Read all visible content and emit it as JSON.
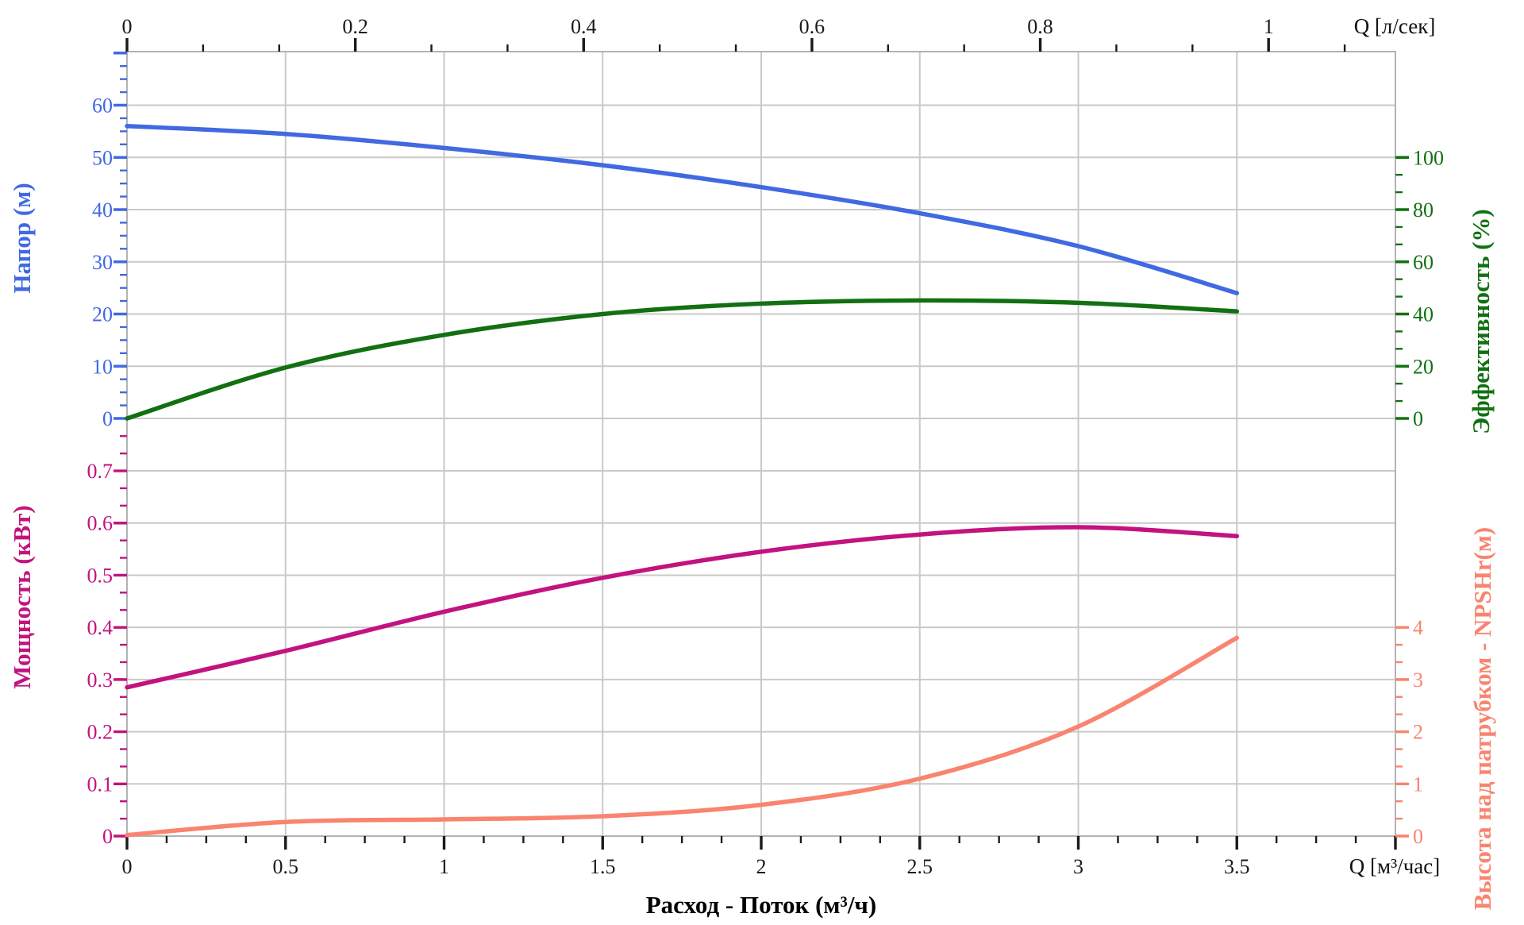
{
  "chart_data": {
    "type": "line",
    "title": "",
    "grid": true,
    "legend": "none",
    "x": [
      0,
      0.5,
      1,
      1.5,
      2,
      2.5,
      3,
      3.5
    ],
    "series": [
      {
        "name": "Напор",
        "unit": "м",
        "axis": "head_left",
        "color": "#4169e1",
        "values": [
          56,
          54.5,
          51.8,
          48.5,
          44.3,
          39.3,
          33,
          24
        ]
      },
      {
        "name": "Эффективность",
        "unit": "%",
        "axis": "efficiency_right",
        "color": "#127012",
        "values": [
          0,
          19.5,
          32,
          40,
          44,
          45.2,
          44.3,
          41
        ]
      },
      {
        "name": "Мощность",
        "unit": "кВт",
        "axis": "power_left",
        "color": "#c2137f",
        "values": [
          0.285,
          0.355,
          0.43,
          0.495,
          0.545,
          0.578,
          0.592,
          0.575
        ]
      },
      {
        "name": "NPSHr",
        "unit": "м",
        "axis": "npshr_right",
        "color": "#f9846f",
        "values": [
          0.02,
          0.27,
          0.32,
          0.38,
          0.6,
          1.1,
          2.1,
          3.8
        ]
      }
    ],
    "axes": {
      "top_x": {
        "unit_label": "Q [л/сек]",
        "ticks": [
          "0",
          "0.2",
          "0.4",
          "0.6",
          "0.8",
          "1"
        ],
        "range": [
          0,
          1.11
        ],
        "color": "#1a1a1a"
      },
      "bottom_x": {
        "unit_label": "Q [м³/час]",
        "title": "Расход - Поток (м³/ч)",
        "ticks": [
          "0",
          "0.5",
          "1",
          "1.5",
          "2",
          "2.5",
          "3",
          "3.5"
        ],
        "range": [
          0,
          4
        ],
        "color": "#1a1a1a"
      },
      "head_left": {
        "title": "Напор (м)",
        "ticks": [
          "0",
          "10",
          "20",
          "30",
          "40",
          "50",
          "60"
        ],
        "range": [
          0,
          60
        ],
        "color": "#4169e1"
      },
      "efficiency_right": {
        "title": "Эффективность (%)",
        "ticks": [
          "0",
          "20",
          "40",
          "60",
          "80",
          "100"
        ],
        "range": [
          0,
          100
        ],
        "color": "#127012"
      },
      "power_left": {
        "title": "Мощность (кВт)",
        "ticks": [
          "0",
          "0.1",
          "0.2",
          "0.3",
          "0.4",
          "0.5",
          "0.6",
          "0.7"
        ],
        "range": [
          0,
          0.7
        ],
        "color": "#c2137f"
      },
      "npshr_right": {
        "title": "Высота над патрубком - NPSHr(м)",
        "ticks": [
          "0",
          "1",
          "2",
          "3",
          "4"
        ],
        "range": [
          0,
          4
        ],
        "color": "#f9846f"
      }
    }
  }
}
